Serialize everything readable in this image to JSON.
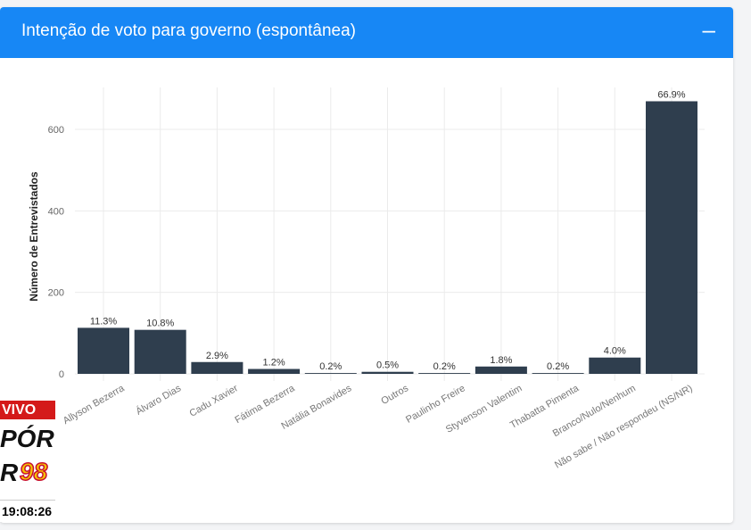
{
  "panel": {
    "title": "Intenção de voto para governo (espontânea)",
    "collapse_label": "–",
    "header_color": "#1787f5"
  },
  "chart_data": {
    "type": "bar",
    "title": "",
    "xlabel": "",
    "ylabel": "Número de Entrevistados",
    "ylim": [
      0,
      700
    ],
    "yticks": [
      0,
      200,
      400,
      600
    ],
    "grid": true,
    "bar_color": "#2f3e4e",
    "categories": [
      "Allyson Bezerra",
      "Álvaro Dias",
      "Cadu Xavier",
      "Fátima Bezerra",
      "Natália Bonavides",
      "Outros",
      "Paulinho Freire",
      "Styvenson Valentim",
      "Thabatta Pimenta",
      "Branco/Nulo/Nenhum",
      "Não sabe / Não respondeu (NS/NR)"
    ],
    "values": [
      113,
      108,
      29,
      12,
      2,
      5,
      2,
      18,
      2,
      40,
      669
    ],
    "labels": [
      "11.3%",
      "10.8%",
      "2.9%",
      "1.2%",
      "0.2%",
      "0.5%",
      "0.2%",
      "1.8%",
      "0.2%",
      "4.0%",
      "66.9%"
    ]
  },
  "overlay": {
    "live_label": "VIVO",
    "logo_line1": "PÓR",
    "logo_line2": "R",
    "logo_number": "98",
    "time": "19:08:26"
  }
}
